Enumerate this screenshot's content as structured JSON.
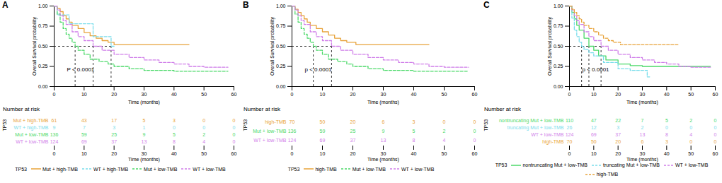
{
  "chart_data": [
    {
      "type": "line",
      "title": "A",
      "xlabel": "Time (months)",
      "ylabel": "Overall Survival probability",
      "xlim": [
        0,
        60
      ],
      "xticks": [
        0,
        10,
        20,
        30,
        40,
        50,
        60
      ],
      "ylim": [
        0,
        1
      ],
      "yticks": [
        {
          "value": 0,
          "label": "0.00"
        },
        {
          "value": 0.25,
          "label": "0.25"
        },
        {
          "value": 0.5,
          "label": "0.50"
        },
        {
          "value": 0.75,
          "label": "0.75"
        },
        {
          "value": 1,
          "label": "1.00"
        }
      ],
      "annotation": "P < 0.0001",
      "legend": "bottom",
      "legend_title": "TP53",
      "medians": {
        "y": 0.5,
        "x": [
          7,
          13,
          19
        ]
      },
      "series": [
        {
          "name": "Mut + high-TMB",
          "color": "#E8A33A",
          "line_style": "solid",
          "x": [
            0,
            1,
            2,
            3,
            4,
            5,
            6,
            8,
            10,
            12,
            14,
            16,
            18,
            20,
            45
          ],
          "values": [
            1,
            0.97,
            0.93,
            0.88,
            0.84,
            0.8,
            0.76,
            0.72,
            0.67,
            0.63,
            0.6,
            0.57,
            0.55,
            0.52,
            0.52
          ]
        },
        {
          "name": "WT + high-TMB",
          "color": "#7ADDEB",
          "line_style": "dashed",
          "x": [
            0,
            1,
            3,
            5,
            10,
            13,
            16,
            19,
            20
          ],
          "values": [
            1,
            0.89,
            0.89,
            0.78,
            0.78,
            0.62,
            0.62,
            0.5,
            0.5
          ]
        },
        {
          "name": "Mut + low-TMB",
          "color": "#4CD96A",
          "line_style": "dashed",
          "x": [
            0,
            1,
            2,
            3,
            4,
            5,
            6,
            7,
            8,
            10,
            12,
            15,
            18,
            20,
            25,
            30,
            40,
            58
          ],
          "values": [
            1,
            0.9,
            0.8,
            0.72,
            0.65,
            0.6,
            0.55,
            0.5,
            0.45,
            0.4,
            0.34,
            0.31,
            0.28,
            0.25,
            0.22,
            0.2,
            0.19,
            0.19
          ]
        },
        {
          "name": "WT + low-TMB",
          "color": "#D07FE9",
          "line_style": "dashed",
          "x": [
            0,
            1,
            2,
            3,
            4,
            6,
            8,
            10,
            13,
            16,
            20,
            25,
            30,
            35,
            40,
            45,
            50,
            58
          ],
          "values": [
            1,
            0.95,
            0.88,
            0.82,
            0.77,
            0.68,
            0.62,
            0.57,
            0.5,
            0.45,
            0.4,
            0.36,
            0.33,
            0.3,
            0.28,
            0.25,
            0.24,
            0.24
          ]
        }
      ],
      "risk_table": {
        "title": "Number at risk",
        "ylabel": "TP53",
        "times": [
          0,
          10,
          20,
          30,
          40,
          50,
          60
        ],
        "rows": [
          {
            "name": "Mut + high-TMB",
            "color": "#E8A33A",
            "values": [
              61,
              43,
              17,
              5,
              3,
              0,
              0
            ]
          },
          {
            "name": "WT + high-TMB",
            "color": "#7ADDEB",
            "values": [
              9,
              7,
              3,
              1,
              0,
              0,
              0
            ]
          },
          {
            "name": "Mut + low-TMB",
            "color": "#4CD96A",
            "values": [
              136,
              59,
              25,
              9,
              5,
              2,
              0
            ]
          },
          {
            "name": "WT + low-TMB",
            "color": "#D07FE9",
            "values": [
              124,
              69,
              37,
              13,
              8,
              4,
              0
            ]
          }
        ]
      }
    },
    {
      "type": "line",
      "title": "B",
      "xlabel": "Time (months)",
      "ylabel": "Overall Survival probability",
      "xlim": [
        0,
        60
      ],
      "xticks": [
        0,
        10,
        20,
        30,
        40,
        50,
        60
      ],
      "ylim": [
        0,
        1
      ],
      "yticks": [
        {
          "value": 0,
          "label": "0.00"
        },
        {
          "value": 0.25,
          "label": "0.25"
        },
        {
          "value": 0.5,
          "label": "0.50"
        },
        {
          "value": 0.75,
          "label": "0.75"
        },
        {
          "value": 1,
          "label": "1.00"
        }
      ],
      "annotation": "p < 0.0001",
      "legend": "bottom",
      "legend_title": "TP53",
      "medians": {
        "y": 0.5,
        "x": [
          7,
          13
        ]
      },
      "series": [
        {
          "name": "high-TMB",
          "color": "#E8A33A",
          "line_style": "solid",
          "x": [
            0,
            1,
            2,
            3,
            4,
            5,
            6,
            8,
            10,
            12,
            14,
            16,
            18,
            21,
            45
          ],
          "values": [
            1,
            0.96,
            0.92,
            0.88,
            0.84,
            0.8,
            0.76,
            0.72,
            0.68,
            0.64,
            0.6,
            0.57,
            0.55,
            0.52,
            0.52
          ]
        },
        {
          "name": "Mut + low-TMB",
          "color": "#4CD96A",
          "line_style": "dashed",
          "x": [
            0,
            1,
            2,
            3,
            4,
            5,
            6,
            7,
            8,
            10,
            12,
            15,
            18,
            20,
            25,
            30,
            40,
            58
          ],
          "values": [
            1,
            0.9,
            0.8,
            0.72,
            0.65,
            0.6,
            0.55,
            0.5,
            0.45,
            0.4,
            0.34,
            0.31,
            0.28,
            0.25,
            0.22,
            0.2,
            0.19,
            0.19
          ]
        },
        {
          "name": "WT + low-TMB",
          "color": "#D07FE9",
          "line_style": "dashed",
          "x": [
            0,
            1,
            2,
            3,
            4,
            6,
            8,
            10,
            13,
            16,
            20,
            25,
            30,
            35,
            40,
            45,
            50,
            58
          ],
          "values": [
            1,
            0.95,
            0.88,
            0.82,
            0.77,
            0.68,
            0.62,
            0.57,
            0.5,
            0.45,
            0.4,
            0.36,
            0.33,
            0.3,
            0.28,
            0.25,
            0.24,
            0.24
          ]
        }
      ],
      "risk_table": {
        "title": "Number at risk",
        "ylabel": "TP53",
        "times": [
          0,
          10,
          20,
          30,
          40,
          50,
          60
        ],
        "rows": [
          {
            "name": "high-TMB",
            "color": "#E8A33A",
            "values": [
              70,
              50,
              20,
              6,
              3,
              0,
              0
            ]
          },
          {
            "name": "Mut + low-TMB",
            "color": "#4CD96A",
            "values": [
              136,
              59,
              25,
              9,
              5,
              2,
              0
            ]
          },
          {
            "name": "WT + low-TMB",
            "color": "#D07FE9",
            "values": [
              124,
              69,
              37,
              13,
              8,
              4,
              0
            ]
          }
        ]
      }
    },
    {
      "type": "line",
      "title": "C",
      "xlabel": "Time (months)",
      "ylabel": "Overall Survival probability",
      "xlim": [
        0,
        60
      ],
      "xticks": [
        0,
        10,
        20,
        30,
        40,
        50,
        60
      ],
      "ylim": [
        0,
        1
      ],
      "yticks": [
        {
          "value": 0,
          "label": "0.00"
        },
        {
          "value": 0.25,
          "label": "0.25"
        },
        {
          "value": 0.5,
          "label": "0.50"
        },
        {
          "value": 0.75,
          "label": "0.75"
        },
        {
          "value": 1,
          "label": "1.00"
        }
      ],
      "annotation": "p < 0.0001",
      "legend": "bottom",
      "legend_title": "TP53",
      "medians": {
        "y": 0.5,
        "x": [
          5,
          8,
          13
        ]
      },
      "series": [
        {
          "name": "nontruncating Mut + low-TMB",
          "color": "#4CD96A",
          "line_style": "solid",
          "x": [
            0,
            1,
            2,
            3,
            4,
            6,
            8,
            10,
            12,
            15,
            20,
            25,
            30,
            40,
            58
          ],
          "values": [
            1,
            0.92,
            0.84,
            0.76,
            0.7,
            0.6,
            0.5,
            0.45,
            0.38,
            0.33,
            0.28,
            0.26,
            0.25,
            0.25,
            0.25
          ]
        },
        {
          "name": "truncating Mut + low-TMB",
          "color": "#7ADDEB",
          "line_style": "dashed",
          "x": [
            0,
            1,
            2,
            3,
            4,
            5,
            6,
            8,
            10,
            14,
            20,
            25,
            32,
            33
          ],
          "values": [
            1,
            0.85,
            0.7,
            0.62,
            0.55,
            0.5,
            0.46,
            0.42,
            0.38,
            0.3,
            0.22,
            0.2,
            0.12,
            0.12
          ]
        },
        {
          "name": "WT + low-TMB",
          "color": "#D07FE9",
          "line_style": "dashed",
          "x": [
            0,
            1,
            2,
            3,
            4,
            6,
            8,
            10,
            13,
            16,
            20,
            25,
            30,
            35,
            40,
            45,
            50,
            58
          ],
          "values": [
            1,
            0.95,
            0.88,
            0.82,
            0.77,
            0.68,
            0.62,
            0.57,
            0.5,
            0.45,
            0.4,
            0.36,
            0.33,
            0.3,
            0.28,
            0.25,
            0.24,
            0.24
          ]
        },
        {
          "name": "high-TMB",
          "color": "#E8A33A",
          "line_style": "dashed",
          "x": [
            0,
            1,
            2,
            3,
            4,
            5,
            6,
            8,
            10,
            12,
            14,
            16,
            18,
            21,
            45
          ],
          "values": [
            1,
            0.96,
            0.92,
            0.88,
            0.84,
            0.8,
            0.76,
            0.72,
            0.68,
            0.64,
            0.6,
            0.57,
            0.55,
            0.52,
            0.52
          ]
        }
      ],
      "risk_table": {
        "title": "Number at risk",
        "ylabel": "TP53",
        "times": [
          0,
          10,
          20,
          30,
          40,
          50,
          60
        ],
        "rows": [
          {
            "name": "nontruncating Mut + low-TMB",
            "color": "#4CD96A",
            "values": [
              110,
              47,
              22,
              7,
              5,
              2,
              0
            ]
          },
          {
            "name": "truncating Mut + low-TMB",
            "color": "#7ADDEB",
            "values": [
              26,
              12,
              3,
              2,
              0,
              0,
              0
            ]
          },
          {
            "name": "WT + low-TMB",
            "color": "#D07FE9",
            "values": [
              124,
              69,
              37,
              13,
              8,
              4,
              0
            ]
          },
          {
            "name": "high-TMB",
            "color": "#E8A33A",
            "values": [
              70,
              50,
              20,
              6,
              3,
              0,
              0
            ]
          }
        ]
      }
    }
  ]
}
